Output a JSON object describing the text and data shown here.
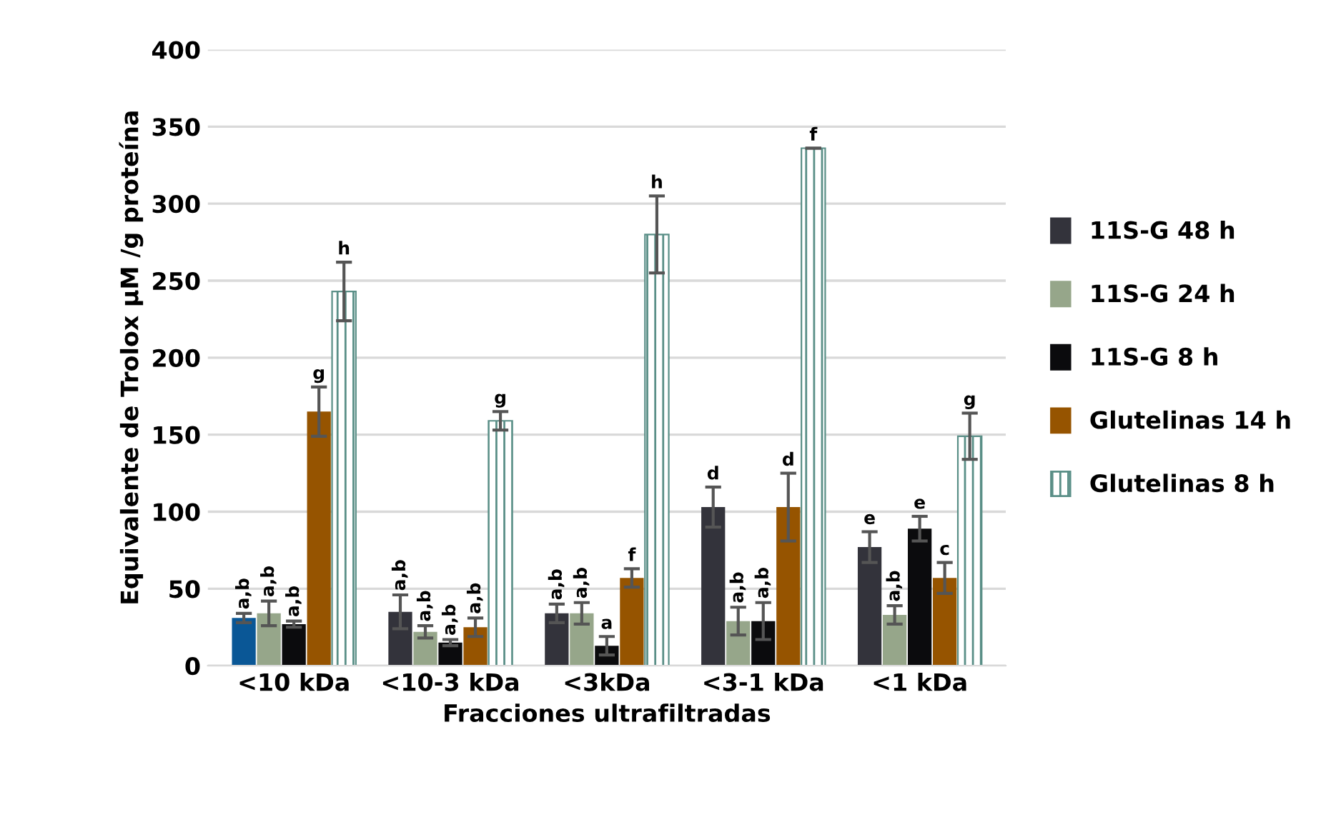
{
  "chart_data": {
    "type": "bar",
    "xlabel": "Fracciones ultrafiltradas",
    "ylabel": "Equivalente de Trolox µM /g proteína",
    "categories": [
      "<10 kDa",
      "<10-3 kDa",
      "<3kDa",
      "<3-1 kDa",
      "<1 kDa"
    ],
    "series": [
      {
        "name": "11S-G 48 h",
        "color": "#33333b",
        "colors": [
          "#0a5796",
          "#33333b",
          "#33333b",
          "#33333b",
          "#33333b"
        ],
        "values": [
          31,
          35,
          34,
          103,
          77
        ],
        "errors": [
          3,
          11,
          6,
          13,
          10
        ],
        "value_labels": [
          "a,b",
          "a,b",
          "a,b",
          "d",
          "e"
        ]
      },
      {
        "name": "11S-G 24 h",
        "color": "#96a68a",
        "values": [
          34,
          22,
          34,
          29,
          33
        ],
        "errors": [
          8,
          4,
          7,
          9,
          6
        ],
        "value_labels": [
          "a,b",
          "a,b",
          "a,b",
          "a,b",
          "a,b"
        ]
      },
      {
        "name": "11S-G 8 h",
        "color": "#0b0b0d",
        "values": [
          27,
          15,
          13,
          29,
          89
        ],
        "errors": [
          2,
          2,
          6,
          12,
          8
        ],
        "value_labels": [
          "a,b",
          "a,b",
          "a",
          "a,b",
          "e"
        ]
      },
      {
        "name": "Glutelinas 14 h",
        "color": "#965400",
        "values": [
          165,
          25,
          57,
          103,
          57
        ],
        "errors": [
          16,
          6,
          6,
          22,
          10
        ],
        "value_labels": [
          "g",
          "a,b",
          "f",
          "d",
          "c"
        ]
      },
      {
        "name": "Glutelinas 8 h",
        "color": "#5a8f87",
        "values": [
          243,
          159,
          280,
          336,
          149
        ],
        "errors": [
          19,
          6,
          25,
          0,
          15
        ],
        "value_labels": [
          "h",
          "g",
          "h",
          "f",
          "g"
        ]
      }
    ],
    "ylim": [
      0,
      400
    ],
    "yticks": [
      0,
      50,
      100,
      150,
      200,
      250,
      300,
      350,
      400
    ],
    "grid": "y",
    "legend": "right"
  }
}
